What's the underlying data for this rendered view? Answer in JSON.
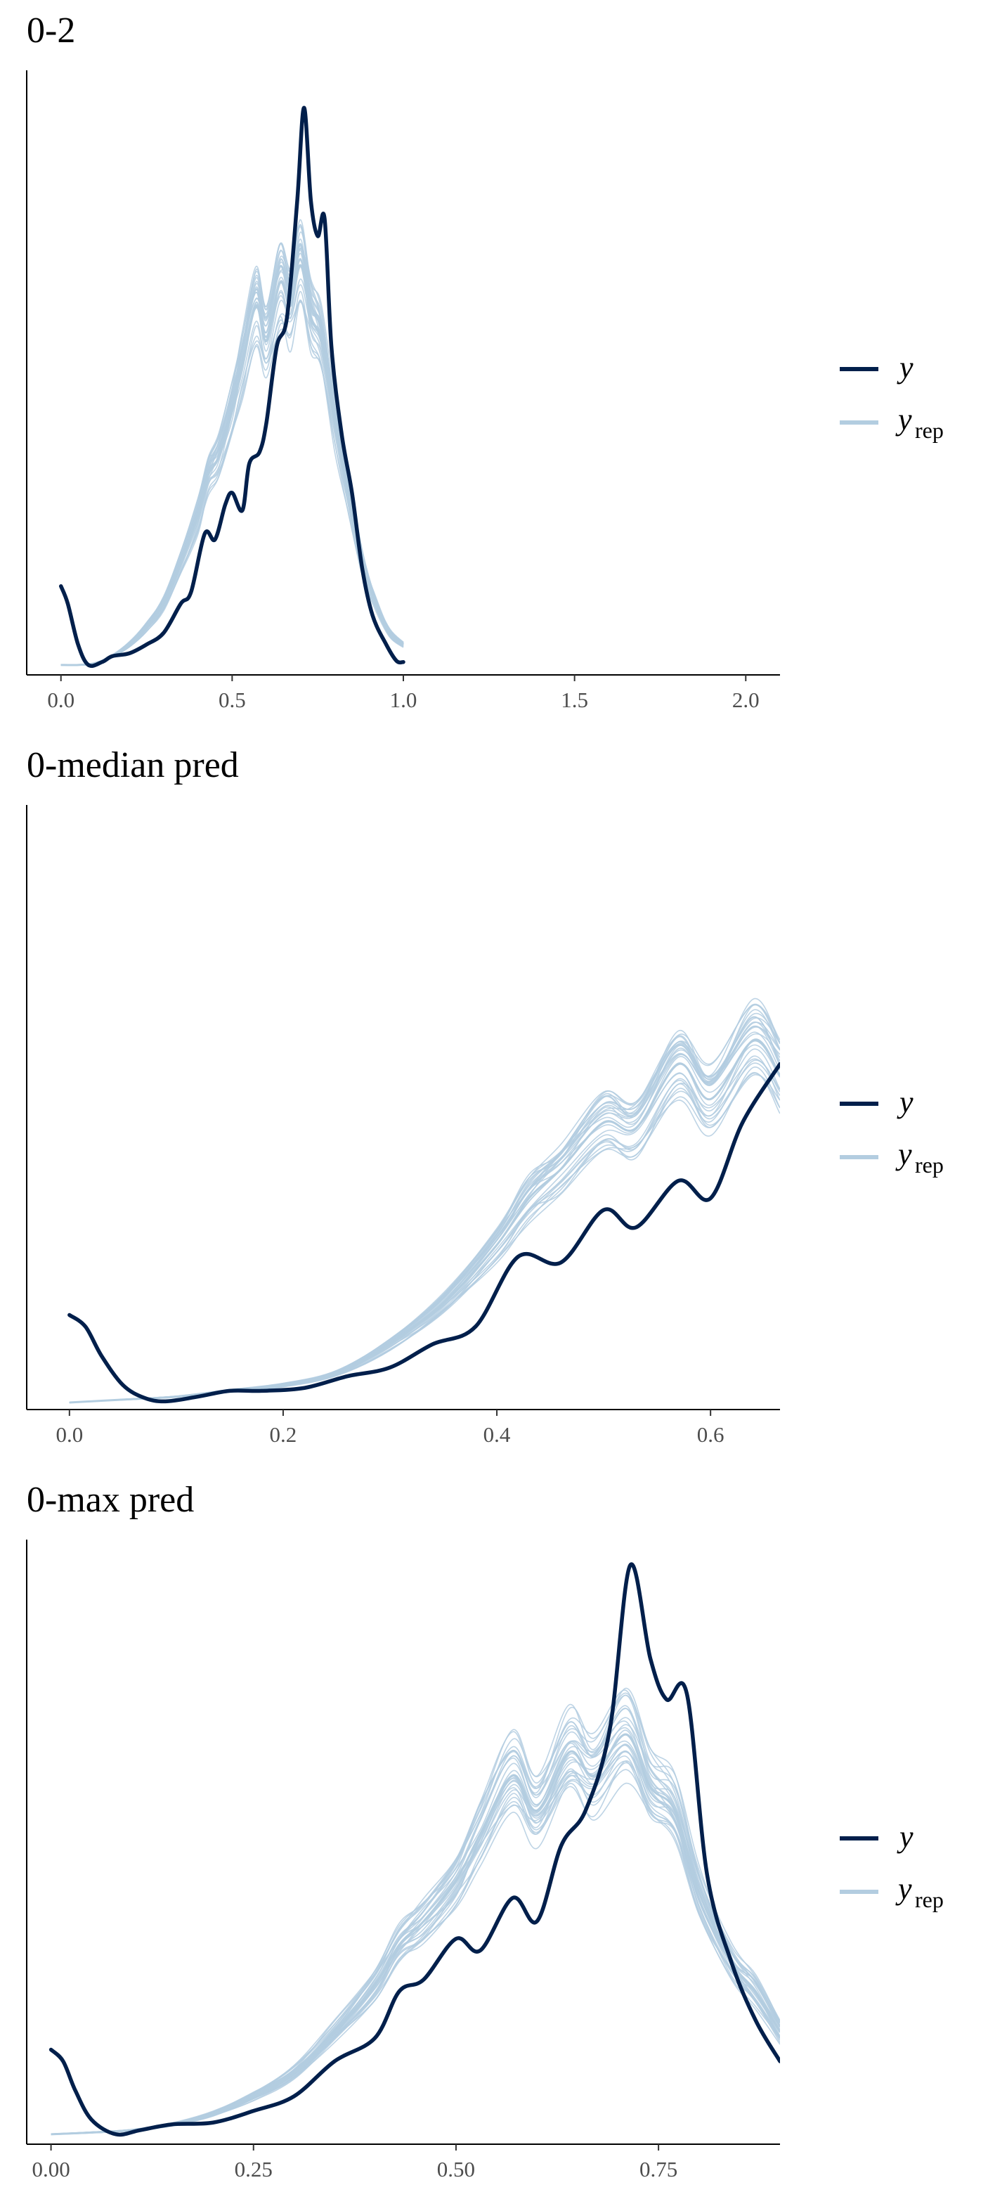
{
  "colors": {
    "y": "#011f4b",
    "yrep": "#b3cde0",
    "axis": "#000000",
    "tick_text": "#4d4d4d"
  },
  "legend": {
    "y_label": "y",
    "yrep_label": "y",
    "yrep_sub": "rep"
  },
  "chart_data": [
    {
      "type": "line",
      "title": "0-2",
      "xlim": [
        -0.1,
        2.1
      ],
      "xticks": [
        0.0,
        0.5,
        1.0,
        1.5,
        2.0
      ],
      "xtick_labels": [
        "0.0",
        "0.5",
        "1.0",
        "1.5",
        "2.0"
      ],
      "yaxis_ticks": false,
      "ylim": [
        0,
        1.0
      ],
      "series": [
        {
          "name": "y",
          "role": "observed",
          "x": [
            0.0,
            0.02,
            0.05,
            0.08,
            0.12,
            0.15,
            0.2,
            0.25,
            0.3,
            0.35,
            0.38,
            0.42,
            0.45,
            0.48,
            0.5,
            0.53,
            0.55,
            0.58,
            0.6,
            0.63,
            0.66,
            0.69,
            0.71,
            0.73,
            0.75,
            0.77,
            0.79,
            0.82,
            0.85,
            0.88,
            0.91,
            0.95,
            0.98,
            1.0
          ],
          "y": [
            0.14,
            0.11,
            0.04,
            0.005,
            0.01,
            0.02,
            0.025,
            0.04,
            0.06,
            0.11,
            0.13,
            0.23,
            0.22,
            0.28,
            0.3,
            0.27,
            0.35,
            0.37,
            0.42,
            0.55,
            0.6,
            0.8,
            0.96,
            0.8,
            0.74,
            0.77,
            0.55,
            0.4,
            0.3,
            0.17,
            0.09,
            0.04,
            0.012,
            0.01
          ]
        },
        {
          "name": "yrep",
          "role": "replicated",
          "x": [
            0.0,
            0.05,
            0.1,
            0.15,
            0.2,
            0.25,
            0.3,
            0.35,
            0.4,
            0.43,
            0.46,
            0.5,
            0.53,
            0.57,
            0.6,
            0.64,
            0.67,
            0.7,
            0.73,
            0.76,
            0.8,
            0.84,
            0.88,
            0.92,
            0.96,
            1.0
          ],
          "y": [
            0.005,
            0.005,
            0.008,
            0.02,
            0.04,
            0.07,
            0.11,
            0.18,
            0.26,
            0.33,
            0.36,
            0.44,
            0.52,
            0.62,
            0.56,
            0.66,
            0.62,
            0.69,
            0.6,
            0.56,
            0.42,
            0.3,
            0.18,
            0.11,
            0.06,
            0.04
          ]
        }
      ]
    },
    {
      "type": "line",
      "title": "0-median pred",
      "xlim": [
        -0.04,
        0.665
      ],
      "xticks": [
        0.0,
        0.2,
        0.4,
        0.6
      ],
      "xtick_labels": [
        "0.0",
        "0.2",
        "0.4",
        "0.6"
      ],
      "yaxis_ticks": false,
      "ylim": [
        0,
        1.0
      ],
      "series": [
        {
          "name": "y",
          "role": "observed",
          "x": [
            0.0,
            0.015,
            0.03,
            0.05,
            0.07,
            0.09,
            0.12,
            0.15,
            0.18,
            0.22,
            0.26,
            0.3,
            0.34,
            0.38,
            0.42,
            0.46,
            0.5,
            0.53,
            0.57,
            0.6,
            0.63,
            0.665
          ],
          "y": [
            0.15,
            0.13,
            0.08,
            0.03,
            0.008,
            0.002,
            0.01,
            0.02,
            0.02,
            0.025,
            0.045,
            0.06,
            0.1,
            0.13,
            0.25,
            0.24,
            0.33,
            0.3,
            0.38,
            0.35,
            0.48,
            0.58
          ]
        },
        {
          "name": "yrep",
          "role": "replicated",
          "x": [
            0.0,
            0.05,
            0.1,
            0.15,
            0.2,
            0.25,
            0.3,
            0.35,
            0.4,
            0.43,
            0.46,
            0.5,
            0.53,
            0.57,
            0.6,
            0.64,
            0.665
          ],
          "y": [
            0.0,
            0.005,
            0.01,
            0.02,
            0.03,
            0.05,
            0.1,
            0.17,
            0.27,
            0.35,
            0.4,
            0.48,
            0.47,
            0.58,
            0.52,
            0.62,
            0.56
          ]
        }
      ]
    },
    {
      "type": "line",
      "title": "0-max pred",
      "xlim": [
        -0.03,
        0.9
      ],
      "xticks": [
        0.0,
        0.25,
        0.5,
        0.75
      ],
      "xtick_labels": [
        "0.00",
        "0.25",
        "0.50",
        "0.75"
      ],
      "yaxis_ticks": false,
      "ylim": [
        0,
        1.0
      ],
      "series": [
        {
          "name": "y",
          "role": "observed",
          "x": [
            0.0,
            0.015,
            0.03,
            0.05,
            0.08,
            0.11,
            0.15,
            0.2,
            0.25,
            0.3,
            0.35,
            0.4,
            0.43,
            0.46,
            0.5,
            0.53,
            0.57,
            0.6,
            0.63,
            0.66,
            0.69,
            0.715,
            0.74,
            0.76,
            0.785,
            0.81,
            0.84,
            0.87,
            0.9
          ],
          "y": [
            0.15,
            0.13,
            0.08,
            0.03,
            0.005,
            0.012,
            0.022,
            0.025,
            0.045,
            0.07,
            0.13,
            0.17,
            0.25,
            0.27,
            0.34,
            0.32,
            0.41,
            0.37,
            0.5,
            0.56,
            0.7,
            0.98,
            0.82,
            0.75,
            0.76,
            0.45,
            0.3,
            0.2,
            0.13
          ]
        },
        {
          "name": "yrep",
          "role": "replicated",
          "x": [
            0.0,
            0.05,
            0.1,
            0.15,
            0.2,
            0.25,
            0.3,
            0.35,
            0.4,
            0.43,
            0.46,
            0.5,
            0.53,
            0.57,
            0.6,
            0.64,
            0.67,
            0.71,
            0.74,
            0.77,
            0.8,
            0.84,
            0.87,
            0.9
          ],
          "y": [
            0.005,
            0.008,
            0.012,
            0.022,
            0.04,
            0.07,
            0.11,
            0.18,
            0.26,
            0.33,
            0.37,
            0.44,
            0.52,
            0.62,
            0.56,
            0.66,
            0.62,
            0.69,
            0.6,
            0.56,
            0.42,
            0.3,
            0.25,
            0.18
          ]
        }
      ]
    }
  ]
}
